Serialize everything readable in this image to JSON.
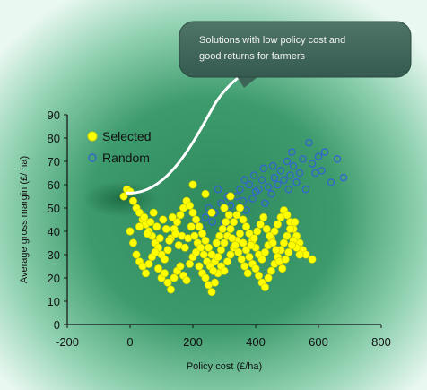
{
  "callout": {
    "text_line1": "Solutions with low policy cost and",
    "text_line2": "good returns for farmers"
  },
  "chart_data": {
    "type": "scatter",
    "title": "",
    "xlabel": "Policy cost (£/ha)",
    "ylabel": "Average gross margin (£/ ha)",
    "xlim": [
      -200,
      800
    ],
    "ylim": [
      0,
      90
    ],
    "x_ticks": [
      -200,
      0,
      200,
      400,
      600,
      800
    ],
    "y_ticks": [
      0,
      10,
      20,
      30,
      40,
      50,
      60,
      70,
      80,
      90
    ],
    "x_tick_labels": [
      "-200",
      "0",
      "200",
      "400",
      "600",
      "800"
    ],
    "y_tick_labels": [
      "0",
      "10",
      "20",
      "30",
      "40",
      "50",
      "60",
      "70",
      "80",
      "90"
    ],
    "grid": false,
    "legend_position": "top-left",
    "series": [
      {
        "name": "Random",
        "marker": "open-circle",
        "color": "#3366cc",
        "points": [
          [
            250,
            50
          ],
          [
            270,
            48
          ],
          [
            290,
            52
          ],
          [
            310,
            55
          ],
          [
            330,
            47
          ],
          [
            350,
            58
          ],
          [
            360,
            53
          ],
          [
            380,
            60
          ],
          [
            400,
            57
          ],
          [
            420,
            62
          ],
          [
            440,
            59
          ],
          [
            460,
            63
          ],
          [
            480,
            66
          ],
          [
            500,
            70
          ],
          [
            510,
            64
          ],
          [
            520,
            68
          ],
          [
            530,
            61
          ],
          [
            540,
            65
          ],
          [
            560,
            58
          ],
          [
            570,
            78
          ],
          [
            580,
            69
          ],
          [
            600,
            72
          ],
          [
            610,
            66
          ],
          [
            620,
            74
          ],
          [
            640,
            61
          ],
          [
            660,
            71
          ],
          [
            680,
            63
          ],
          [
            590,
            65
          ],
          [
            550,
            71
          ],
          [
            300,
            43
          ],
          [
            320,
            51
          ],
          [
            340,
            55
          ],
          [
            370,
            49
          ],
          [
            390,
            54
          ],
          [
            410,
            58
          ],
          [
            430,
            52
          ],
          [
            450,
            56
          ],
          [
            470,
            60
          ],
          [
            490,
            62
          ],
          [
            505,
            58
          ],
          [
            515,
            74
          ],
          [
            365,
            62
          ],
          [
            395,
            64
          ],
          [
            425,
            67
          ],
          [
            455,
            68
          ],
          [
            280,
            58
          ],
          [
            262,
            44
          ],
          [
            240,
            46
          ],
          [
            215,
            43
          ],
          [
            230,
            41
          ]
        ]
      },
      {
        "name": "Selected",
        "marker": "filled-circle",
        "color": "#ffff00",
        "points": [
          [
            -20,
            55
          ],
          [
            -10,
            58
          ],
          [
            0,
            57
          ],
          [
            10,
            53
          ],
          [
            20,
            50
          ],
          [
            30,
            48
          ],
          [
            40,
            45
          ],
          [
            50,
            43
          ],
          [
            60,
            40
          ],
          [
            70,
            38
          ],
          [
            80,
            35
          ],
          [
            90,
            33
          ],
          [
            100,
            30
          ],
          [
            110,
            28
          ],
          [
            120,
            32
          ],
          [
            130,
            37
          ],
          [
            140,
            41
          ],
          [
            150,
            44
          ],
          [
            160,
            47
          ],
          [
            170,
            50
          ],
          [
            180,
            53
          ],
          [
            190,
            51
          ],
          [
            200,
            48
          ],
          [
            210,
            45
          ],
          [
            220,
            42
          ],
          [
            230,
            39
          ],
          [
            240,
            36
          ],
          [
            250,
            33
          ],
          [
            260,
            30
          ],
          [
            270,
            27
          ],
          [
            280,
            29
          ],
          [
            290,
            32
          ],
          [
            300,
            35
          ],
          [
            310,
            38
          ],
          [
            320,
            41
          ],
          [
            330,
            44
          ],
          [
            340,
            47
          ],
          [
            350,
            50
          ],
          [
            360,
            45
          ],
          [
            370,
            42
          ],
          [
            380,
            39
          ],
          [
            390,
            36
          ],
          [
            400,
            33
          ],
          [
            410,
            30
          ],
          [
            420,
            28
          ],
          [
            430,
            31
          ],
          [
            440,
            34
          ],
          [
            450,
            37
          ],
          [
            460,
            40
          ],
          [
            470,
            43
          ],
          [
            480,
            46
          ],
          [
            490,
            49
          ],
          [
            500,
            47
          ],
          [
            510,
            44
          ],
          [
            520,
            41
          ],
          [
            530,
            38
          ],
          [
            540,
            35
          ],
          [
            550,
            32
          ],
          [
            560,
            30
          ],
          [
            580,
            28
          ],
          [
            0,
            40
          ],
          [
            10,
            35
          ],
          [
            20,
            30
          ],
          [
            30,
            27
          ],
          [
            40,
            25
          ],
          [
            50,
            22
          ],
          [
            60,
            26
          ],
          [
            70,
            29
          ],
          [
            80,
            31
          ],
          [
            90,
            24
          ],
          [
            100,
            20
          ],
          [
            110,
            22
          ],
          [
            120,
            18
          ],
          [
            130,
            15
          ],
          [
            140,
            20
          ],
          [
            150,
            23
          ],
          [
            160,
            25
          ],
          [
            170,
            21
          ],
          [
            180,
            19
          ],
          [
            190,
            26
          ],
          [
            200,
            29
          ],
          [
            210,
            31
          ],
          [
            220,
            25
          ],
          [
            230,
            22
          ],
          [
            240,
            20
          ],
          [
            250,
            17
          ],
          [
            260,
            14
          ],
          [
            270,
            18
          ],
          [
            280,
            22
          ],
          [
            290,
            25
          ],
          [
            300,
            23
          ],
          [
            310,
            27
          ],
          [
            320,
            30
          ],
          [
            330,
            33
          ],
          [
            340,
            36
          ],
          [
            350,
            39
          ],
          [
            360,
            35
          ],
          [
            370,
            32
          ],
          [
            380,
            29
          ],
          [
            390,
            26
          ],
          [
            400,
            24
          ],
          [
            410,
            21
          ],
          [
            420,
            18
          ],
          [
            430,
            16
          ],
          [
            440,
            20
          ],
          [
            450,
            23
          ],
          [
            460,
            26
          ],
          [
            470,
            29
          ],
          [
            480,
            32
          ],
          [
            490,
            35
          ],
          [
            500,
            38
          ],
          [
            510,
            41
          ],
          [
            520,
            36
          ],
          [
            530,
            33
          ],
          [
            540,
            30
          ],
          [
            30,
            42
          ],
          [
            45,
            46
          ],
          [
            55,
            39
          ],
          [
            65,
            44
          ],
          [
            75,
            48
          ],
          [
            85,
            42
          ],
          [
            95,
            37
          ],
          [
            105,
            45
          ],
          [
            115,
            41
          ],
          [
            125,
            36
          ],
          [
            135,
            46
          ],
          [
            145,
            39
          ],
          [
            155,
            34
          ],
          [
            165,
            38
          ],
          [
            175,
            33
          ],
          [
            185,
            37
          ],
          [
            195,
            42
          ],
          [
            205,
            38
          ],
          [
            215,
            35
          ],
          [
            225,
            33
          ],
          [
            235,
            30
          ],
          [
            245,
            27
          ],
          [
            255,
            25
          ],
          [
            265,
            23
          ],
          [
            275,
            35
          ],
          [
            285,
            38
          ],
          [
            295,
            41
          ],
          [
            305,
            44
          ],
          [
            315,
            47
          ],
          [
            325,
            37
          ],
          [
            335,
            34
          ],
          [
            345,
            31
          ],
          [
            355,
            28
          ],
          [
            365,
            25
          ],
          [
            375,
            22
          ],
          [
            385,
            34
          ],
          [
            395,
            37
          ],
          [
            405,
            40
          ],
          [
            415,
            43
          ],
          [
            425,
            46
          ],
          [
            435,
            41
          ],
          [
            445,
            38
          ],
          [
            455,
            35
          ],
          [
            465,
            32
          ],
          [
            475,
            27
          ],
          [
            485,
            24
          ],
          [
            495,
            28
          ],
          [
            505,
            31
          ],
          [
            515,
            34
          ],
          [
            525,
            44
          ],
          [
            200,
            60
          ],
          [
            240,
            56
          ],
          [
            320,
            55
          ],
          [
            300,
            50
          ],
          [
            260,
            48
          ]
        ]
      }
    ]
  }
}
